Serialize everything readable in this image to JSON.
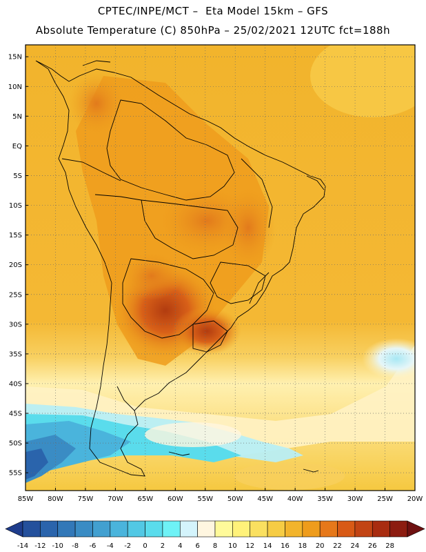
{
  "header": {
    "line1": "CPTEC/INPE/MCT –  Eta Model 15km – GFS",
    "line2": "Absolute Temperature (C) 850hPa – 25/02/2021 12UTC fct=188h"
  },
  "map": {
    "lon_range": [
      -85,
      -20
    ],
    "lat_range": [
      -58,
      17
    ],
    "lat_ticks": [
      "15N",
      "10N",
      "5N",
      "EQ",
      "5S",
      "10S",
      "15S",
      "20S",
      "25S",
      "30S",
      "35S",
      "40S",
      "45S",
      "50S",
      "55S"
    ],
    "lat_values": [
      15,
      10,
      5,
      0,
      -5,
      -10,
      -15,
      -20,
      -25,
      -30,
      -35,
      -40,
      -45,
      -50,
      -55
    ],
    "lon_ticks": [
      "85W",
      "80W",
      "75W",
      "70W",
      "65W",
      "60W",
      "55W",
      "50W",
      "45W",
      "40W",
      "35W",
      "30W",
      "25W",
      "20W"
    ],
    "lon_values": [
      -85,
      -80,
      -75,
      -70,
      -65,
      -60,
      -55,
      -50,
      -45,
      -40,
      -35,
      -30,
      -25,
      -20
    ],
    "grid": "dotted"
  },
  "colorbar": {
    "labels": [
      "-14",
      "-12",
      "-10",
      "-8",
      "-6",
      "-4",
      "-2",
      "0",
      "2",
      "4",
      "6",
      "8",
      "10",
      "12",
      "14",
      "16",
      "18",
      "20",
      "22",
      "24",
      "26",
      "28"
    ],
    "colors": [
      "#1e3c8c",
      "#24509c",
      "#2a64ac",
      "#3278b8",
      "#3a8cc4",
      "#42a0d0",
      "#4ab4dc",
      "#52c8e4",
      "#5adcec",
      "#6ef2f6",
      "#d4f4fc",
      "#fff6e0",
      "#fffa9a",
      "#fff27a",
      "#fae060",
      "#f6cc44",
      "#f2b42c",
      "#ee9c1c",
      "#e6781a",
      "#d85a16",
      "#c24414",
      "#a82c10",
      "#8c1c10",
      "#6e1010"
    ]
  }
}
